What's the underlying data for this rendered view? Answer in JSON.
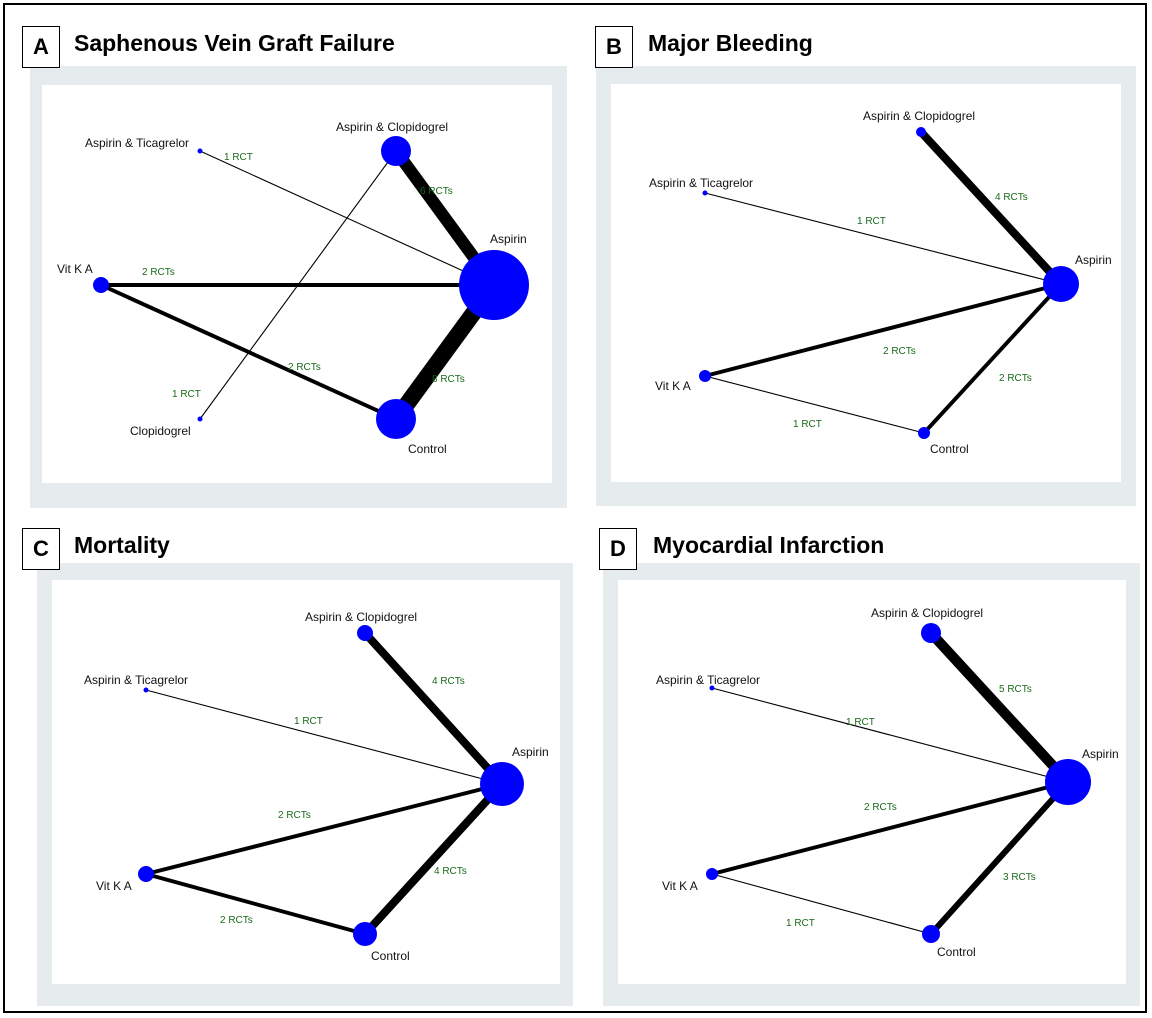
{
  "panels": [
    {
      "letter": "A",
      "title": "Saphenous Vein Graft Failure",
      "nodes": [
        {
          "id": "asp_tic",
          "label": "Aspirin & Ticagrelor",
          "r": 2.5
        },
        {
          "id": "asp_clo",
          "label": "Aspirin & Clopidogrel",
          "r": 15
        },
        {
          "id": "asp",
          "label": "Aspirin",
          "r": 35
        },
        {
          "id": "vka",
          "label": "Vit K A",
          "r": 8
        },
        {
          "id": "clo",
          "label": "Clopidogrel",
          "r": 2.5
        },
        {
          "id": "ctrl",
          "label": "Control",
          "r": 20
        }
      ],
      "edges": [
        {
          "from": "asp_tic",
          "to": "asp",
          "label": "1 RCT",
          "rcts": 1
        },
        {
          "from": "asp_clo",
          "to": "asp",
          "label": "6 RCTs",
          "rcts": 6
        },
        {
          "from": "vka",
          "to": "asp",
          "label": "2 RCTs",
          "rcts": 2
        },
        {
          "from": "vka",
          "to": "ctrl",
          "label": "2 RCTs",
          "rcts": 2
        },
        {
          "from": "clo",
          "to": "asp_clo",
          "label": "1 RCT",
          "rcts": 1
        },
        {
          "from": "ctrl",
          "to": "asp",
          "label": "8 RCTs",
          "rcts": 8
        }
      ]
    },
    {
      "letter": "B",
      "title": "Major Bleeding",
      "nodes": [
        {
          "id": "asp_clo",
          "label": "Aspirin & Clopidogrel",
          "r": 5
        },
        {
          "id": "asp_tic",
          "label": "Aspirin & Ticagrelor",
          "r": 2.5
        },
        {
          "id": "asp",
          "label": "Aspirin",
          "r": 18
        },
        {
          "id": "vka",
          "label": "Vit K A",
          "r": 6
        },
        {
          "id": "ctrl",
          "label": "Control",
          "r": 6
        }
      ],
      "edges": [
        {
          "from": "asp_clo",
          "to": "asp",
          "label": "4 RCTs",
          "rcts": 4
        },
        {
          "from": "asp_tic",
          "to": "asp",
          "label": "1 RCT",
          "rcts": 1
        },
        {
          "from": "vka",
          "to": "asp",
          "label": "2 RCTs",
          "rcts": 2
        },
        {
          "from": "ctrl",
          "to": "asp",
          "label": "2 RCTs",
          "rcts": 2
        },
        {
          "from": "vka",
          "to": "ctrl",
          "label": "1 RCT",
          "rcts": 1
        }
      ]
    },
    {
      "letter": "C",
      "title": "Mortality",
      "nodes": [
        {
          "id": "asp_clo",
          "label": "Aspirin & Clopidogrel",
          "r": 8
        },
        {
          "id": "asp_tic",
          "label": "Aspirin & Ticagrelor",
          "r": 2.5
        },
        {
          "id": "asp",
          "label": "Aspirin",
          "r": 22
        },
        {
          "id": "vka",
          "label": "Vit K A",
          "r": 8
        },
        {
          "id": "ctrl",
          "label": "Control",
          "r": 12
        }
      ],
      "edges": [
        {
          "from": "asp_clo",
          "to": "asp",
          "label": "4 RCTs",
          "rcts": 4
        },
        {
          "from": "asp_tic",
          "to": "asp",
          "label": "1 RCT",
          "rcts": 1
        },
        {
          "from": "vka",
          "to": "asp",
          "label": "2 RCTs",
          "rcts": 2
        },
        {
          "from": "ctrl",
          "to": "asp",
          "label": "4 RCTs",
          "rcts": 4
        },
        {
          "from": "vka",
          "to": "ctrl",
          "label": "2 RCTs",
          "rcts": 2
        }
      ]
    },
    {
      "letter": "D",
      "title": "Myocardial Infarction",
      "nodes": [
        {
          "id": "asp_clo",
          "label": "Aspirin & Clopidogrel",
          "r": 10
        },
        {
          "id": "asp_tic",
          "label": "Aspirin & Ticagrelor",
          "r": 2.5
        },
        {
          "id": "asp",
          "label": "Aspirin",
          "r": 23
        },
        {
          "id": "vka",
          "label": "Vit K A",
          "r": 6
        },
        {
          "id": "ctrl",
          "label": "Control",
          "r": 9
        }
      ],
      "edges": [
        {
          "from": "asp_clo",
          "to": "asp",
          "label": "5 RCTs",
          "rcts": 5
        },
        {
          "from": "asp_tic",
          "to": "asp",
          "label": "1 RCT",
          "rcts": 1
        },
        {
          "from": "vka",
          "to": "asp",
          "label": "2 RCTs",
          "rcts": 2
        },
        {
          "from": "ctrl",
          "to": "asp",
          "label": "3 RCTs",
          "rcts": 3
        },
        {
          "from": "vka",
          "to": "ctrl",
          "label": "1 RCT",
          "rcts": 1
        }
      ]
    }
  ],
  "colors": {
    "node": "#0000ff",
    "edge": "#000000",
    "edge_label": "#1a6a1a",
    "panel_bg": "#e6eced"
  }
}
